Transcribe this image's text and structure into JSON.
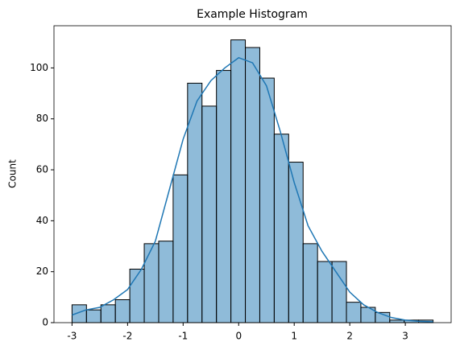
{
  "chart_data": {
    "type": "histogram",
    "title": "Example Histogram",
    "y_label": "Count",
    "bins": [
      -3,
      -2.74,
      -2.48,
      -2.22,
      -1.96,
      -1.7,
      -1.44,
      -1.18,
      -0.92,
      -0.66,
      -0.4,
      -0.14,
      0.12,
      0.38,
      0.64,
      0.9,
      1.16,
      1.42,
      1.68,
      1.94,
      2.2,
      2.46,
      2.72,
      2.98,
      3.24,
      3.5
    ],
    "counts": [
      7,
      5,
      7,
      9,
      21,
      31,
      32,
      58,
      94,
      85,
      99,
      111,
      108,
      96,
      74,
      63,
      31,
      24,
      24,
      8,
      6,
      4,
      1,
      1,
      1
    ],
    "color": "rgba(31,119,180,0.5)",
    "edgecolor": "#000000",
    "kde": {
      "color": "#1f77b4",
      "x": [
        -3,
        -2.75,
        -2.5,
        -2.25,
        -2,
        -1.75,
        -1.5,
        -1.25,
        -1,
        -0.75,
        -0.5,
        -0.25,
        0,
        0.25,
        0.5,
        0.75,
        1,
        1.25,
        1.5,
        1.75,
        2,
        2.25,
        2.5,
        2.75,
        3,
        3.25,
        3.5
      ],
      "y": [
        3,
        5,
        6,
        9,
        13,
        21,
        32,
        52,
        72,
        87,
        95,
        100,
        104,
        102,
        93,
        75,
        55,
        38,
        28,
        20,
        12,
        7,
        4,
        2,
        1,
        0.5,
        0.3
      ]
    },
    "xlim": [
      -3.325,
      3.825
    ],
    "ylim": [
      0,
      116.55
    ],
    "xticks": [
      -3,
      -2,
      -1,
      0,
      1,
      2,
      3
    ],
    "yticks": [
      0,
      20,
      40,
      60,
      80,
      100
    ]
  }
}
